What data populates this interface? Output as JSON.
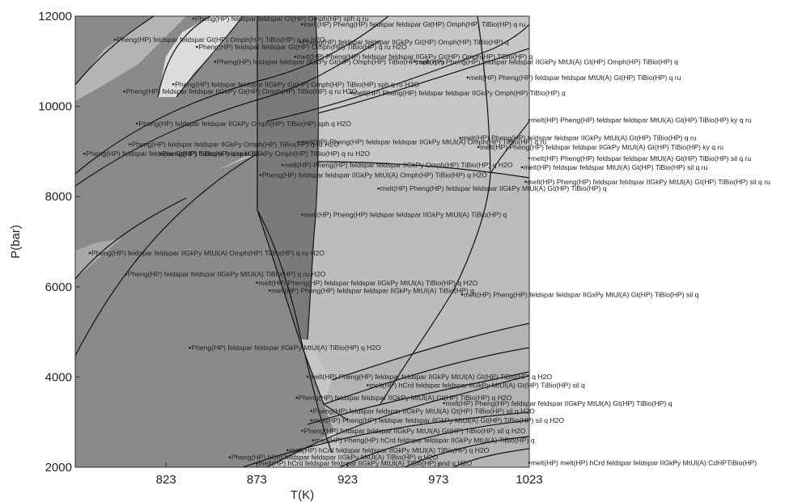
{
  "chart_data": {
    "type": "phase-diagram",
    "xlabel": "T(K)",
    "ylabel": "P(bar)",
    "xlim": [
      773,
      1023
    ],
    "ylim": [
      2000,
      12000
    ],
    "x_ticks": [
      "823",
      "873",
      "923",
      "973",
      "1023"
    ],
    "y_ticks": [
      "2000",
      "4000",
      "6000",
      "8000",
      "10000",
      "12000"
    ],
    "colors": {
      "light": "#c6c6c6",
      "mid": "#a9a9a9",
      "dark": "#8a8a8a",
      "darker": "#7a7a7a",
      "lightest": "#dcdcdc"
    },
    "field_labels": [
      {
        "text": "Pheng(HP) feldspar feldspar Gt(HP) Omph(HP) sph q ru",
        "x": 838,
        "y": 11950
      },
      {
        "text": "melt(HP) Pheng(HP) feldspar feldspar Gt(HP) Omph(HP) TiBio(HP) q ru",
        "x": 898,
        "y": 11820
      },
      {
        "text": "Pheng(HP) feldspar feldspar Gt(HP) Omph(HP) TiBio(HP) q ru H2O",
        "x": 795,
        "y": 11480
      },
      {
        "text": "Pheng(HP) feldspar feldspar IIGkPy Gt(HP) Omph(HP) TiBio(HP) q",
        "x": 897,
        "y": 11430
      },
      {
        "text": "Pheng(HP) feldspar feldspar Gt(HP) Omph(HP) TiBio(HP) q ru H2O",
        "x": 840,
        "y": 11320
      },
      {
        "text": "melt(HP) Pheng(HP) feldspar feldspar IIGkPy Gt(HP) Omph(HP) TiBio(HP) q",
        "x": 894,
        "y": 11100
      },
      {
        "text": "Pheng(HP) feldspar feldspar IIGkPy Gt(HP) Omph(HP) TiBio(HP) sph q ru",
        "x": 850,
        "y": 10990
      },
      {
        "text": "melt(HP) Pheng(HP) feldspar feldspar IIGkPy MtUl(A) Gt(HP) Omph(HP) TiBio(HP) q",
        "x": 960,
        "y": 10990
      },
      {
        "text": "melt(HP) Pheng(HP) feldspar feldspar MtUl(A) Gt(HP) TiBio(HP) q ru",
        "x": 989,
        "y": 10640
      },
      {
        "text": "Pheng(HP) feldspar feldspar IIGkPy Gt(HP) Omph(HP) TiBio(HP) sph q ru H2O",
        "x": 827,
        "y": 10490
      },
      {
        "text": "Pheng(HP) feldspar feldspar IIGkPy Gt(HP) Omph(HP) TiBio(HP) q ru H2O",
        "x": 800,
        "y": 10330
      },
      {
        "text": "melt(HP) Pheng(HP) feldspar feldspar IIGkPy Omph(HP) TiBio(HP) q",
        "x": 925,
        "y": 10300
      },
      {
        "text": "melt(HP) Pheng(HP) feldspar feldspar MtUl(A) Gt(HP) TiBio(HP) ky q ru",
        "x": 1023,
        "y": 9700
      },
      {
        "text": "Pheng(HP) feldspar feldspar IIGkPy Omph(HP) TiBio(HP) sph q H2O",
        "x": 807,
        "y": 9620
      },
      {
        "text": "melt(HP) Pheng(HP) feldspar feldspar IIGkPy MtUl(A) Gt(HP) TiBio(HP) q ru",
        "x": 985,
        "y": 9300
      },
      {
        "text": "Pheng(HP) feldspar feldspar IIGkPy Omph(HP) TiBio(HP) q ru H2O",
        "x": 803,
        "y": 9160
      },
      {
        "text": "melt(HP) Pheng(HP) feldspar feldspar IIGkPy MtUl(A) Omph(HP) TiBio(HP) q ru",
        "x": 896,
        "y": 9210
      },
      {
        "text": "melt(HP) Pheng(HP) feldspar feldspar IIGkPy MtUl(A) Gt(HP) TiBio(HP) ky q ru",
        "x": 995,
        "y": 9100
      },
      {
        "text": "Pheng(HP) feldspar feldspar Gt(HP) TiBio(HP) q ru H2O",
        "x": 778,
        "y": 8950
      },
      {
        "text": "Pheng(HP) feldspar feldspar IIGkPy Omph(HP) TiBio(HP) q ru H2O",
        "x": 820,
        "y": 8950
      },
      {
        "text": "melt(HP) Pheng(HP) feldspar feldspar MtUl(A) Gt(HP) TiBio(HP) sil q ru",
        "x": 1023,
        "y": 8850
      },
      {
        "text": "melt(HP) Pheng(HP) feldspar feldspar IIGkPy Omph(HP) TiBio(HP) q H2O",
        "x": 887,
        "y": 8700
      },
      {
        "text": "melt(HP) feldspar feldspar MtUl(A) Gt(HP) TiBio(HP) sil q ru",
        "x": 1019,
        "y": 8650
      },
      {
        "text": "Pheng(HP) feldspar feldspar IIGkPy MtUl(A) Omph(HP) TiBio(HP) q H2O",
        "x": 875,
        "y": 8480
      },
      {
        "text": "melt(HP) Pheng(HP) feldspar feldspar IIGkPy MtUl(A) Gt(HP) TiBio(HP) sil q ru",
        "x": 1021,
        "y": 8330
      },
      {
        "text": "melt(HP) Pheng(HP) feldspar feldspar IIGkPy MtUl(A) Gt(HP) TiBio(HP) q",
        "x": 940,
        "y": 8180
      },
      {
        "text": "melt(HP) Pheng(HP) feldspar feldspar IIGkPy MtUl(A) TiBio(HP) q",
        "x": 898,
        "y": 7600
      },
      {
        "text": "Pheng(HP) feldspar feldspar IIGkPy MtUl(A) Omph(HP) TiBio(HP) q ru H2O",
        "x": 781,
        "y": 6750
      },
      {
        "text": "Pheng(HP) feldspar feldspar IIGkPy MtUl(A) TiBio(HP) q ru H2O",
        "x": 801,
        "y": 6280
      },
      {
        "text": "melt(HP) Pheng(HP) feldspar feldspar IIGkPy MtUl(A) TiBio(HP) q H2O",
        "x": 873,
        "y": 6090
      },
      {
        "text": "melt(HP) Pheng(HP) feldspar feldspar IIGkPy MtUl(A) TiBio(HP) q",
        "x": 880,
        "y": 5920
      },
      {
        "text": "melt(HP) Pheng(HP) feldspar feldspar IIGxPy MtUl(A) Gt(HP) TiBio(HP) sil q",
        "x": 986,
        "y": 5830
      },
      {
        "text": "Pheng(HP) feldspar feldspar IIGkPy MtUl(A) TiBio(HP) q H2O",
        "x": 836,
        "y": 4650
      },
      {
        "text": "melt(HP) Pheng(HP) feldspar feldspar IIGkPy MtUl(A) Gt(HP) TiBio(HP) q H2O",
        "x": 901,
        "y": 4010
      },
      {
        "text": "melt(HP) hCrd feldspar feldspar IIGkPy MtUl(A) Gt(HP) TiBio(HP) sil q",
        "x": 934,
        "y": 3820
      },
      {
        "text": "Pheng(HP) feldspar feldspar IIGkPy MtUl(A) Gt(HP) TiBio(HP) q H2O",
        "x": 895,
        "y": 3540
      },
      {
        "text": "melt(HP) Pheng(HP) feldspar feldspar IIGkPy MtUl(A) Gt(HP) TiBio(HP) q",
        "x": 976,
        "y": 3420
      },
      {
        "text": "Pheng(HP) feldspar feldspar IIGkPy MtUl(A) Gt(HP) TiBio(HP) sil q H2O",
        "x": 903,
        "y": 3250
      },
      {
        "text": "melt(HP) Pheng(HP) feldspar feldspar IIGkPy MtUl(A) Gt(HP) TiBio(HP) sil q H2O",
        "x": 903,
        "y": 3040
      },
      {
        "text": "Pheng(HP) feldspar feldspar IIGkPy MtUl(A) Gt(HP) TiBio(HP) sil q H2O",
        "x": 898,
        "y": 2810
      },
      {
        "text": "melt(HP) Pheng(HP) hCrd feldspar feldspar IIGkPy MtUl(A) TiBio(HP) q",
        "x": 904,
        "y": 2600
      },
      {
        "text": "melt(HP) hCrd feldspar feldspar IIGkPy MtUl(A) TiBio(HP) q H2O",
        "x": 890,
        "y": 2380
      },
      {
        "text": "Pheng(HP) hCrd feldspar feldspar IIGkPy MtUl(A) TiBio(HP) q H2O",
        "x": 858,
        "y": 2220
      },
      {
        "text": "melt(HP) hCrd feldspar feldspar IIGkPy MtUl(A) TiBio(HP) and q H2O",
        "x": 873,
        "y": 2090
      },
      {
        "text": "melt(HP) melt(HP) hCrd feldspar feldspar IIGkPy MtUl(A) CdHPTiBio(HP)",
        "x": 1023,
        "y": 2100
      }
    ]
  }
}
